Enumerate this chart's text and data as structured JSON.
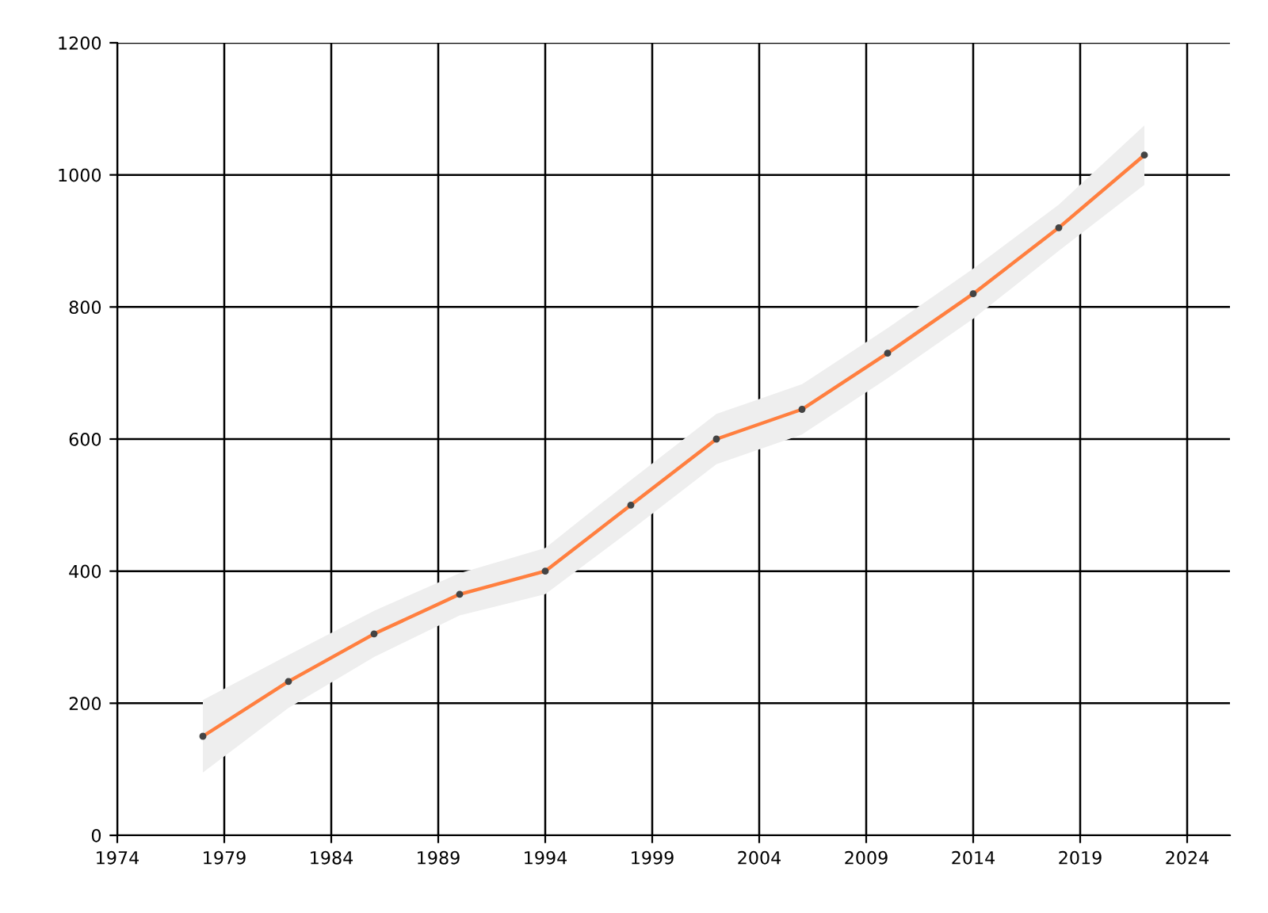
{
  "chart_data": {
    "type": "line",
    "x": [
      1978,
      1982,
      1986,
      1990,
      1994,
      1998,
      2002,
      2006,
      2010,
      2014,
      2018,
      2022
    ],
    "series": [
      {
        "color": "#ff7f3f",
        "values": [
          150,
          233,
          305,
          365,
          400,
          500,
          600,
          645,
          730,
          820,
          920,
          1030
        ],
        "lower": [
          95,
          193,
          270,
          333,
          365,
          462,
          562,
          607,
          692,
          782,
          885,
          985
        ],
        "upper": [
          205,
          273,
          340,
          397,
          435,
          538,
          638,
          683,
          768,
          858,
          955,
          1075
        ]
      }
    ],
    "xlim": [
      1974,
      2026
    ],
    "xticks": [
      1974,
      1979,
      1984,
      1989,
      1994,
      1999,
      2004,
      2009,
      2014,
      2019,
      2024
    ],
    "ylim": [
      0,
      1200
    ],
    "yticks": [
      0,
      200,
      400,
      600,
      800,
      1000,
      1200
    ],
    "grid": true,
    "marker": "circle",
    "line_style": "solid",
    "legend": false
  }
}
